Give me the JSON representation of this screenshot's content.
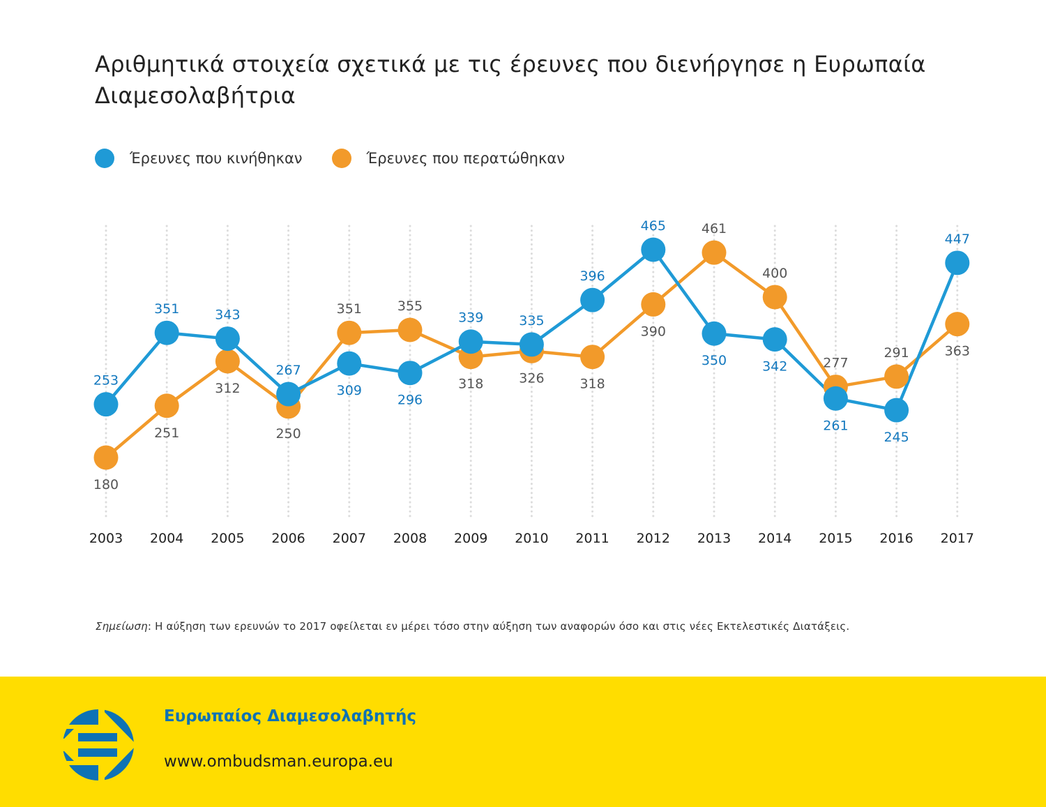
{
  "title": "Αριθμητικά στοιχεία σχετικά με τις έρευνες που διενήργησε η Ευρωπαία Διαμεσολαβήτρια",
  "legend": [
    {
      "label": "Έρευνες που κινήθηκαν",
      "color": "#1f9ad6"
    },
    {
      "label": "Έρευνες που περατώθηκαν",
      "color": "#f29a2a"
    }
  ],
  "chart_data": {
    "type": "line",
    "title": "Αριθμητικά στοιχεία σχετικά με τις έρευνες που διενήργησε η Ευρωπαία Διαμεσολαβήτρια",
    "xlabel": "",
    "ylabel": "",
    "categories": [
      "2003",
      "2004",
      "2005",
      "2006",
      "2007",
      "2008",
      "2009",
      "2010",
      "2011",
      "2012",
      "2013",
      "2014",
      "2015",
      "2016",
      "2017"
    ],
    "series": [
      {
        "name": "Έρευνες που κινήθηκαν",
        "color": "#1f9ad6",
        "label_color": "#1479bf",
        "values": [
          253,
          351,
          343,
          267,
          309,
          296,
          339,
          335,
          396,
          465,
          350,
          342,
          261,
          245,
          447
        ],
        "label_positions": [
          "above",
          "above",
          "above",
          "above",
          "below",
          "below",
          "above",
          "above",
          "above",
          "above",
          "below",
          "below",
          "below",
          "below",
          "above"
        ]
      },
      {
        "name": "Έρευνες που περατώθηκαν",
        "color": "#f29a2a",
        "label_color": "#555555",
        "values": [
          180,
          251,
          312,
          250,
          351,
          355,
          318,
          326,
          318,
          390,
          461,
          400,
          277,
          291,
          363
        ],
        "label_positions": [
          "below",
          "below",
          "below",
          "below",
          "above",
          "above",
          "below",
          "below",
          "below",
          "below",
          "above",
          "above",
          "above",
          "above",
          "below"
        ]
      }
    ],
    "grid": "vertical dotted",
    "legend_position": "top-left",
    "y_axis_visible": false
  },
  "note": {
    "label": "Σημείωση",
    "text": ": Η αύξηση των ερευνών το 2017 οφείλεται εν μέρει τόσο στην αύξηση των αναφορών όσο και στις νέες Εκτελεστικές Διατάξεις."
  },
  "footer": {
    "org_name": "Ευρωπαίος Διαμεσολαβητής",
    "url": "www.ombudsman.europa.eu",
    "background": "#ffdd00",
    "logo_color": "#0e72b5"
  }
}
